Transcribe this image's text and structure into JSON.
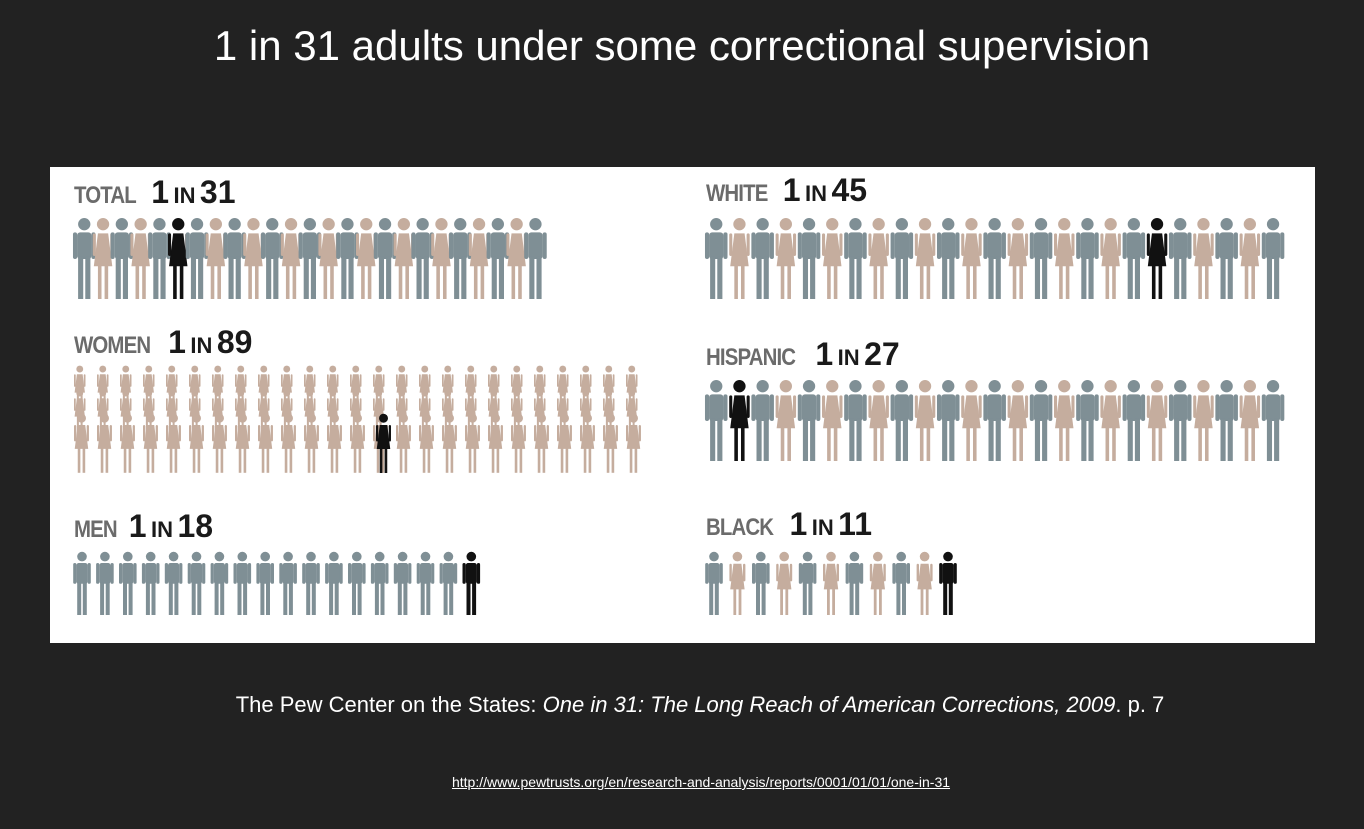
{
  "title": "1 in 31 adults under some correctional supervision",
  "citation": {
    "prefix": "The Pew Center on the States: ",
    "work": "One in 31: The Long Reach of American Corrections, 2009",
    "suffix": ". p. 7"
  },
  "url": "http://www.pewtrusts.org/en/research-and-analysis/reports/0001/01/01/one-in-31",
  "colors": {
    "male": "#7f8f95",
    "female": "#c5ad9e",
    "highlight": "#111111",
    "background": "#222222",
    "panel": "#ffffff"
  },
  "chart_data": {
    "type": "pictograph",
    "groups": [
      {
        "category": "TOTAL",
        "one": "1",
        "in": "IN",
        "ratio": "31",
        "denominator": 31,
        "figure": "mixed"
      },
      {
        "category": "WOMEN",
        "one": "1",
        "in": "IN",
        "ratio": "89",
        "denominator": 89,
        "figure": "female"
      },
      {
        "category": "MEN",
        "one": "1",
        "in": "IN",
        "ratio": "18",
        "denominator": 18,
        "figure": "male"
      },
      {
        "category": "WHITE",
        "one": "1",
        "in": "IN",
        "ratio": "45",
        "denominator": 45,
        "figure": "mixed"
      },
      {
        "category": "HISPANIC",
        "one": "1",
        "in": "IN",
        "ratio": "27",
        "denominator": 27,
        "figure": "mixed"
      },
      {
        "category": "BLACK",
        "one": "1",
        "in": "IN",
        "ratio": "11",
        "denominator": 11,
        "figure": "mixed"
      }
    ]
  }
}
